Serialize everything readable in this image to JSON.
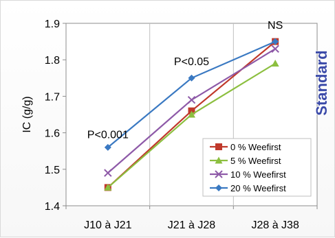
{
  "chart_data": {
    "type": "line",
    "title": "Standard",
    "xlabel": "",
    "ylabel": "IC (g/g)",
    "categories": [
      "J10 à J21",
      "J21 à J28",
      "J28 à J38"
    ],
    "ylim": [
      1.4,
      1.9
    ],
    "yticks": [
      "1.4",
      "1.5",
      "1.6",
      "1.7",
      "1.8",
      "1.9"
    ],
    "grid": "vertical",
    "legend_position": "bottom-right",
    "series": [
      {
        "name": "0 % Weefirst",
        "values": [
          1.45,
          1.66,
          1.85
        ],
        "color": "#c0392b",
        "marker": "square"
      },
      {
        "name": "5 % Weefirst",
        "values": [
          1.45,
          1.65,
          1.79
        ],
        "color": "#8cbf3f",
        "marker": "triangle"
      },
      {
        "name": "10 % Weefirst",
        "values": [
          1.49,
          1.69,
          1.83
        ],
        "color": "#8e5aa8",
        "marker": "x"
      },
      {
        "name": "20 % Weefirst",
        "values": [
          1.56,
          1.75,
          1.85
        ],
        "color": "#3a79c2",
        "marker": "diamond"
      }
    ],
    "annotations": [
      {
        "text": "P<0.001",
        "category_index": 0,
        "y": 1.585
      },
      {
        "text": "P<0.05",
        "category_index": 1,
        "y": 1.785
      },
      {
        "text": "NS",
        "category_index": 2,
        "y": 1.885
      }
    ]
  }
}
